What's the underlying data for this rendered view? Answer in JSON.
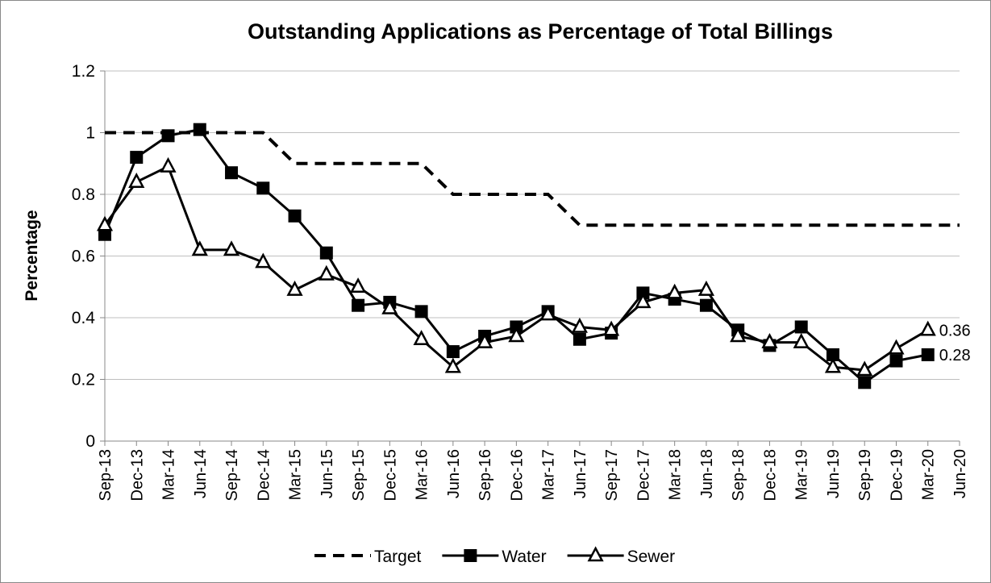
{
  "chart_data": {
    "type": "line",
    "title": "Outstanding Applications as Percentage of Total Billings",
    "y_label": "Percentage",
    "categories": [
      "Sep-13",
      "Dec-13",
      "Mar-14",
      "Jun-14",
      "Sep-14",
      "Dec-14",
      "Mar-15",
      "Jun-15",
      "Sep-15",
      "Dec-15",
      "Mar-16",
      "Jun-16",
      "Sep-16",
      "Dec-16",
      "Mar-17",
      "Jun-17",
      "Sep-17",
      "Dec-17",
      "Mar-18",
      "Jun-18",
      "Sep-18",
      "Dec-18",
      "Mar-19",
      "Jun-19",
      "Sep-19",
      "Dec-19",
      "Mar-20",
      "Jun-20"
    ],
    "series": [
      {
        "name": "Target",
        "color": "#000000",
        "dash": true,
        "marker": "none",
        "values": [
          1,
          1,
          1,
          1,
          1,
          1,
          0.9,
          0.9,
          0.9,
          0.9,
          0.9,
          0.8,
          0.8,
          0.8,
          0.8,
          0.7,
          0.7,
          0.7,
          0.7,
          0.7,
          0.7,
          0.7,
          0.7,
          0.7,
          0.7,
          0.7,
          0.7,
          0.7
        ]
      },
      {
        "name": "Water",
        "color": "#000000",
        "marker": "square",
        "data_labels": "last",
        "values": [
          0.67,
          0.92,
          0.99,
          1.01,
          0.87,
          0.82,
          0.73,
          0.61,
          0.44,
          0.45,
          0.42,
          0.29,
          0.34,
          0.37,
          0.42,
          0.33,
          0.35,
          0.48,
          0.46,
          0.44,
          0.36,
          0.31,
          0.37,
          0.28,
          0.19,
          0.26,
          0.28,
          null
        ]
      },
      {
        "name": "Sewer",
        "color": "#000000",
        "marker": "triangle",
        "data_labels": "last",
        "values": [
          0.7,
          0.84,
          0.89,
          0.62,
          0.62,
          0.58,
          0.49,
          0.54,
          0.5,
          0.43,
          0.33,
          0.24,
          0.32,
          0.34,
          0.41,
          0.37,
          0.36,
          0.45,
          0.48,
          0.49,
          0.34,
          0.32,
          0.32,
          0.24,
          0.23,
          0.3,
          0.36,
          null
        ]
      }
    ],
    "ylim": [
      0,
      1.2
    ],
    "yticks": [
      0,
      0.2,
      0.4,
      0.6,
      0.8,
      1,
      1.2
    ],
    "grid": true,
    "legend": "bottom"
  }
}
